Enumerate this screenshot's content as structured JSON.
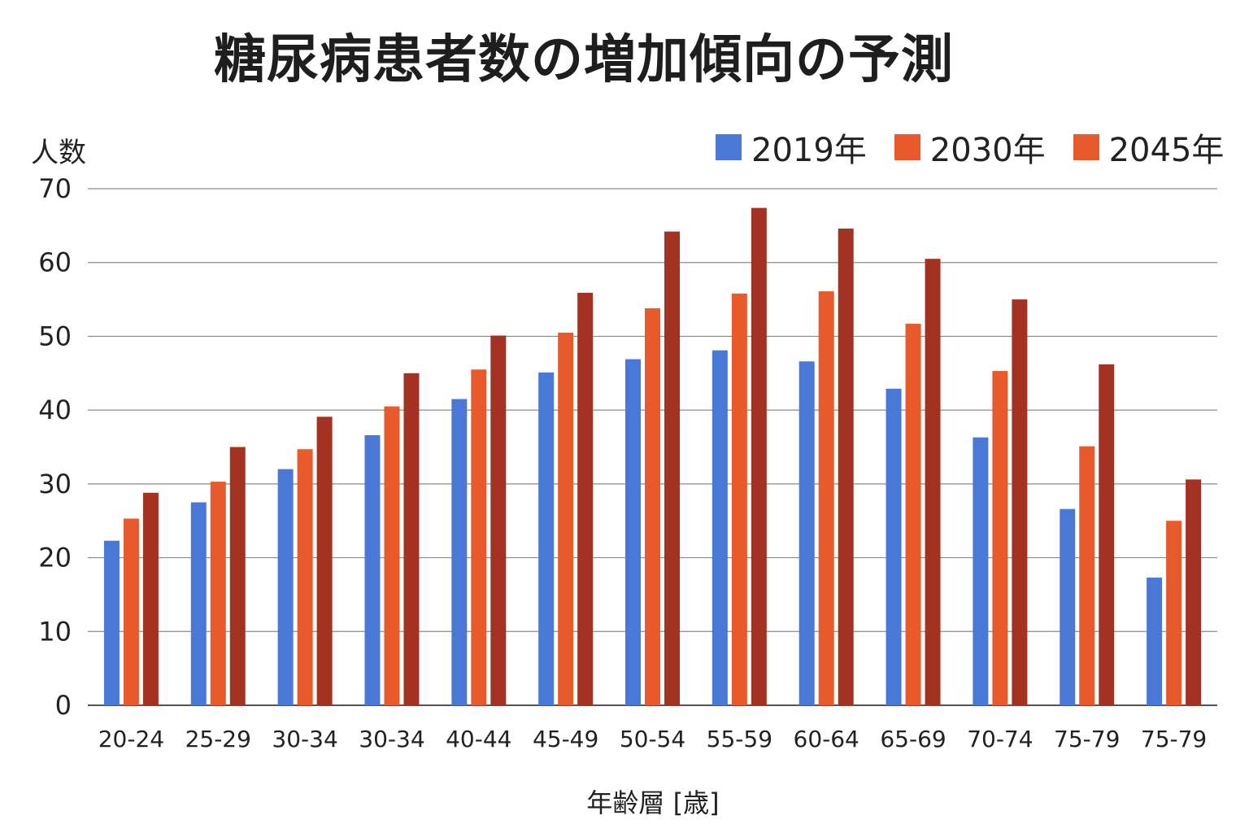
{
  "chart_data": {
    "type": "bar",
    "title": "糖尿病患者数の増加傾向の予測",
    "ylabel": "人数",
    "xlabel": "年齢層 [歳]",
    "ylim": [
      0,
      70
    ],
    "yticks": [
      0,
      10,
      20,
      30,
      40,
      50,
      60,
      70
    ],
    "grid": true,
    "legend_position": "top-right",
    "categories": [
      "20-24",
      "25-29",
      "30-34",
      "30-34",
      "40-44",
      "45-49",
      "50-54",
      "55-59",
      "60-64",
      "65-69",
      "70-74",
      "75-79",
      "75-79"
    ],
    "series": [
      {
        "name": "2019年",
        "color": "#4a78d6",
        "values": [
          22.3,
          27.5,
          32,
          36.6,
          41.5,
          45.1,
          46.9,
          48.1,
          46.6,
          42.9,
          36.3,
          26.6,
          17.3
        ]
      },
      {
        "name": "2030年",
        "color": "#e85a2c",
        "values": [
          25.3,
          30.3,
          34.7,
          40.5,
          45.5,
          50.5,
          53.8,
          55.8,
          56.1,
          51.7,
          45.3,
          35.1,
          25
        ]
      },
      {
        "name": "2045年",
        "color": "#a33222",
        "values": [
          28.8,
          35,
          39.1,
          45,
          50.1,
          55.9,
          64.2,
          67.4,
          64.6,
          60.5,
          55,
          46.2,
          30.6
        ]
      }
    ]
  }
}
